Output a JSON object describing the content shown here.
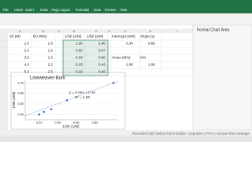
{
  "ribbon": {
    "tabs": [
      "File",
      "Home",
      "Insert",
      "Draw",
      "Page Layout",
      "Formulas",
      "Data",
      "Review",
      "View"
    ]
  },
  "columns": [
    "A",
    "B",
    "C",
    "D",
    "E",
    "F",
    "G",
    "H",
    "I"
  ],
  "table": {
    "header": [
      "S0 (M)",
      "B0 (M/s)",
      "1/S0 (1/M)",
      "1/B0 (s/M)"
    ],
    "rows": [
      [
        "1.0",
        "1.0",
        "1.00",
        "1.00"
      ],
      [
        "2.0",
        "1.5",
        "0.50",
        "0.67"
      ],
      [
        "3.0",
        "2.0",
        "0.33",
        "0.50"
      ],
      [
        "4.0",
        "2.2",
        "0.25",
        "0.45"
      ],
      [
        "5.0",
        "2.5",
        "0.20",
        "0.40"
      ]
    ]
  },
  "fit": {
    "header": [
      "Intercept (s/M)",
      "Slope (s)"
    ],
    "values": [
      "0.34",
      "0.66"
    ],
    "header2": [
      "Vmax (M/s)",
      "KM"
    ],
    "values2": [
      "2.96",
      "1.96"
    ]
  },
  "chart": {
    "title": "Lineweaver-Burk",
    "x_label": "1/S0 (1/M)",
    "y_label": "1/B0 (s/M)",
    "equation": "y = 0.66x + 0.34",
    "r2": "R² = 1.00",
    "xlim": [
      0.05,
      1.05
    ],
    "ylim": [
      0.3,
      1.05
    ],
    "xticks": [
      {
        "value": 0.2,
        "label": "0.20"
      },
      {
        "value": 0.4,
        "label": "0.40"
      },
      {
        "value": 0.6,
        "label": "0.60"
      },
      {
        "value": 0.8,
        "label": "0.80"
      }
    ],
    "yticks": [
      {
        "value": 0.4,
        "label": "0.40"
      },
      {
        "value": 0.6,
        "label": "0.60"
      },
      {
        "value": 0.8,
        "label": "0.80"
      },
      {
        "value": 1.0,
        "label": "1.00"
      }
    ]
  },
  "pane": {
    "title": "Format Chart Area"
  },
  "watermark": "Recorded with Debut Home Edition. Upgrade to Pro to remove this message."
}
